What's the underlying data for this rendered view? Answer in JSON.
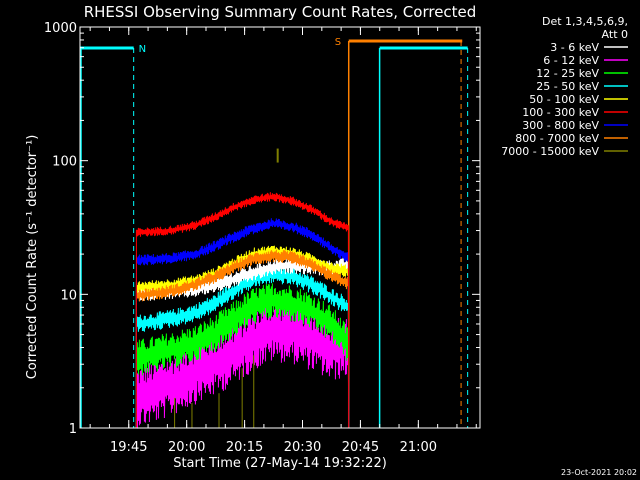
{
  "chart_data": {
    "type": "line",
    "title": "RHESSI Observing Summary Count Rates, Corrected",
    "xlabel": "Start Time (27-May-14 19:32:22)",
    "ylabel": "Corrected Count Rate (s⁻¹ detector⁻¹)",
    "yscale": "log",
    "ylim": [
      1,
      1000
    ],
    "xlim_minutes": [
      0,
      103.6
    ],
    "x_ticks": [
      "19:45",
      "20:00",
      "20:15",
      "20:30",
      "20:45",
      "21:00"
    ],
    "x_tick_minutes": [
      12.63,
      27.63,
      42.63,
      57.63,
      72.63,
      87.63
    ],
    "y_ticks": [
      "1",
      "10",
      "100",
      "1000"
    ],
    "y_tick_values": [
      1,
      10,
      100,
      1000
    ],
    "grid": false,
    "legend": {
      "header": [
        "Det 1,3,4,5,6,9,",
        "Att 0"
      ],
      "placement": "right"
    },
    "series": [
      {
        "name": "3 - 6 keV",
        "color": "#ffffff",
        "x": [
          14.6,
          20,
          25,
          30,
          35,
          40,
          45,
          50,
          55,
          60,
          65,
          69.6
        ],
        "y": [
          10.2,
          10.4,
          10.6,
          11.0,
          11.8,
          13.0,
          14.5,
          16.0,
          16.5,
          16.2,
          15.6,
          16.4
        ]
      },
      {
        "name": "6 - 12 keV",
        "color": "#ff00ff",
        "x": [
          14.6,
          20,
          25,
          30,
          35,
          40,
          45,
          50,
          55,
          60,
          65,
          69.6
        ],
        "y": [
          1.7,
          1.9,
          2.2,
          2.6,
          3.0,
          3.6,
          4.6,
          5.4,
          5.2,
          4.6,
          3.8,
          4.2
        ]
      },
      {
        "name": "12 - 25 keV",
        "color": "#00ff00",
        "x": [
          14.6,
          20,
          25,
          30,
          35,
          40,
          45,
          50,
          55,
          60,
          65,
          69.6
        ],
        "y": [
          3.3,
          3.6,
          3.9,
          4.3,
          5.1,
          6.5,
          8.2,
          9.0,
          8.6,
          7.5,
          6.0,
          4.1
        ]
      },
      {
        "name": "25 - 50 keV",
        "color": "#00ffff",
        "x": [
          14.6,
          20,
          25,
          30,
          35,
          40,
          45,
          50,
          55,
          60,
          65,
          69.6
        ],
        "y": [
          6.0,
          6.3,
          6.7,
          7.3,
          8.6,
          10.8,
          13.0,
          14.2,
          13.6,
          11.8,
          9.6,
          8.0
        ]
      },
      {
        "name": "50 - 100 keV",
        "color": "#ffff00",
        "x": [
          14.6,
          20,
          25,
          30,
          35,
          40,
          45,
          50,
          55,
          60,
          65,
          69.6
        ],
        "y": [
          11.2,
          11.5,
          11.9,
          12.6,
          14.2,
          17.0,
          20.0,
          21.0,
          20.2,
          18.0,
          15.8,
          14.8
        ]
      },
      {
        "name": "100 - 300 keV",
        "color": "#ff0000",
        "x": [
          14.6,
          20,
          25,
          30,
          35,
          40,
          45,
          50,
          55,
          60,
          65,
          69.6
        ],
        "y": [
          29,
          29.5,
          30.5,
          33,
          38,
          45,
          51,
          54,
          50,
          43,
          35,
          31
        ]
      },
      {
        "name": "300 - 800 keV",
        "color": "#0000ff",
        "x": [
          14.6,
          20,
          25,
          30,
          35,
          40,
          45,
          50,
          55,
          60,
          65,
          69.6
        ],
        "y": [
          18,
          18.3,
          18.8,
          20,
          23,
          27,
          31,
          34,
          32,
          28,
          22,
          18.5
        ]
      },
      {
        "name": "800 - 7000 keV",
        "color": "#ff8000",
        "x": [
          14.6,
          20,
          25,
          30,
          35,
          40,
          45,
          50,
          55,
          60,
          65,
          69.6
        ],
        "y": [
          9.8,
          10.2,
          10.8,
          11.8,
          13.5,
          16.0,
          18.5,
          19.5,
          18.8,
          16.5,
          13.8,
          12.0
        ]
      },
      {
        "name": "7000 - 15000 keV",
        "color": "#808000",
        "x": [
          24.5,
          29.0,
          36.0,
          42.0,
          45.0,
          51.2
        ],
        "y": [
          1.2,
          1.1,
          1.3,
          2.0,
          2.5,
          110
        ]
      }
    ],
    "annotations": [
      {
        "label": "N",
        "color": "#00ffff"
      },
      {
        "label": "S",
        "color": "#ff8000"
      }
    ],
    "date_stamp": "23-Oct-2021 20:02"
  }
}
